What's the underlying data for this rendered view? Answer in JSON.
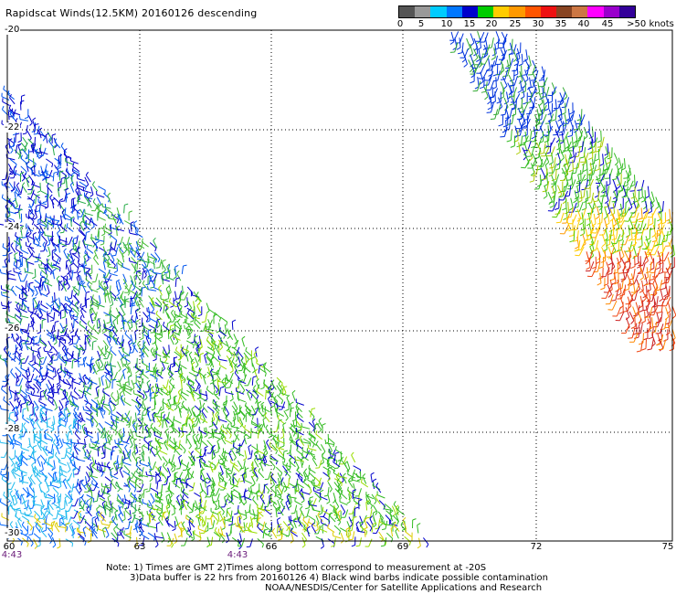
{
  "title": "Rapidscat Winds(12.5KM) 20160126 descending",
  "legend": {
    "colors": [
      "#555555",
      "#999999",
      "#00ccff",
      "#0077ff",
      "#0000cc",
      "#00cc00",
      "#ffcc00",
      "#ff9900",
      "#ff5500",
      "#ee1111",
      "#884422",
      "#cc7744",
      "#ff00ff",
      "#9900cc",
      "#330099"
    ],
    "labels": [
      "0",
      "5",
      "10",
      "15",
      "20",
      "25",
      "30",
      "35",
      "40",
      "45",
      ">50 knots"
    ]
  },
  "lat_labels": [
    "-20",
    "-22",
    "-24",
    "-26",
    "-28",
    "-30"
  ],
  "lon_labels": [
    "60",
    "63",
    "66",
    "69",
    "72",
    "75"
  ],
  "time_labels": [
    "4:43",
    "4:43"
  ],
  "notes": [
    "Note: 1) Times are GMT 2)Times along bottom correspond to measurement at -20S",
    "3)Data buffer is 22 hrs from 20160126 4) Black wind barbs indicate possible contamination",
    "NOAA/NESDIS/Center for Satellite Applications and Research"
  ]
}
